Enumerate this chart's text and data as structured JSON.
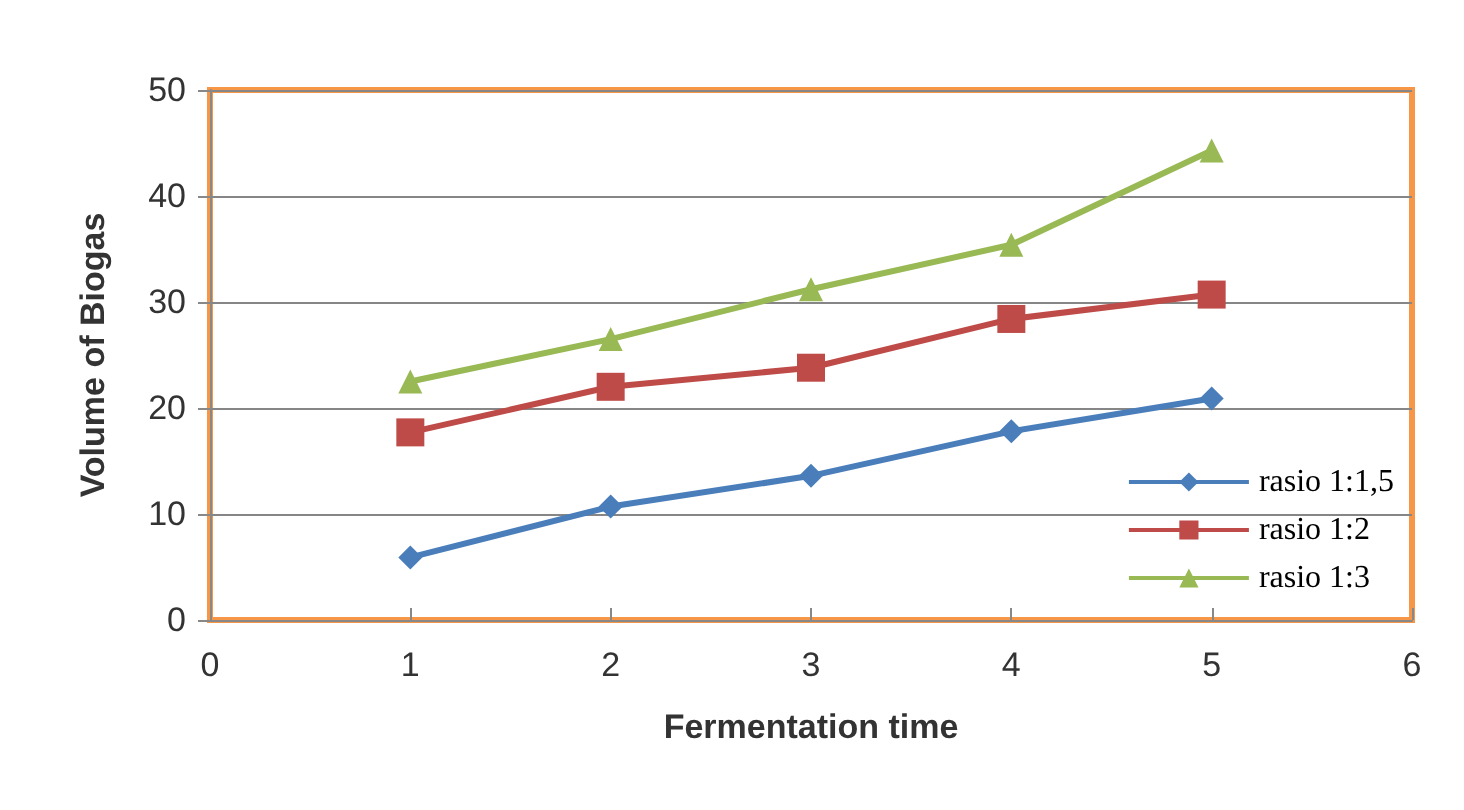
{
  "chart_data": {
    "type": "line",
    "xlabel": "Fermentation time",
    "ylabel": "Volume of Biogas",
    "x": [
      1,
      2,
      3,
      4,
      5
    ],
    "xlim": [
      0,
      6
    ],
    "xticks": [
      0,
      1,
      2,
      3,
      4,
      5,
      6
    ],
    "ylim": [
      0,
      50
    ],
    "yticks": [
      0,
      10,
      20,
      30,
      40,
      50
    ],
    "grid": "y",
    "legend": "bottom right",
    "series": [
      {
        "name": "rasio 1:1,5",
        "color": "#4a7ebb",
        "marker": "diamond",
        "values": [
          5.9,
          10.7,
          13.6,
          17.8,
          20.9
        ]
      },
      {
        "name": "rasio 1:2",
        "color": "#be4b48",
        "marker": "square",
        "values": [
          17.7,
          22.0,
          23.8,
          28.4,
          30.7
        ]
      },
      {
        "name": "rasio 1:3",
        "color": "#98b954",
        "marker": "triangle",
        "values": [
          22.5,
          26.5,
          31.2,
          35.4,
          44.3
        ]
      }
    ]
  }
}
